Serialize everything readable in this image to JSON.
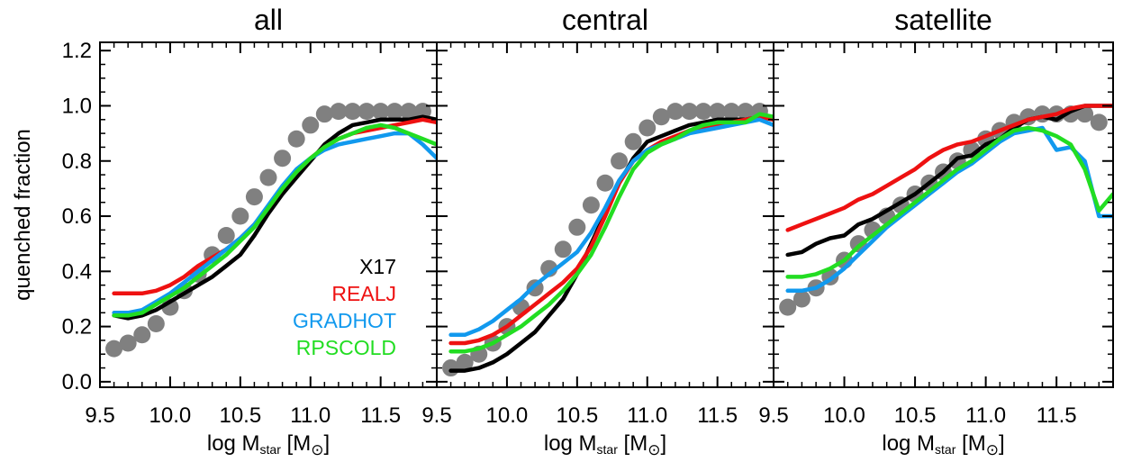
{
  "chart_data": {
    "type": "line",
    "ylabel": "quenched fraction",
    "xlabel": {
      "prefix": "log M",
      "sub": "star",
      "bracket_open": " [M",
      "sun_symbol": "⊙",
      "bracket_close": "]"
    },
    "xlim": [
      9.5,
      11.9
    ],
    "ylim": [
      -0.02,
      1.23
    ],
    "xticks": [
      9.5,
      10.0,
      10.5,
      11.0,
      11.5
    ],
    "xtick_labels": [
      "9.5",
      "10.0",
      "10.5",
      "11.0",
      "11.5"
    ],
    "yticks": [
      0.0,
      0.2,
      0.4,
      0.6,
      0.8,
      1.0,
      1.2
    ],
    "ytick_labels": [
      "0.0",
      "0.2",
      "0.4",
      "0.6",
      "0.8",
      "1.0",
      "1.2"
    ],
    "colors": {
      "X17": "#000000",
      "REALJ": "#ee1111",
      "GRADHOT": "#1199ee",
      "RPSCOLD": "#22dd22",
      "data": "#808080"
    },
    "legend": {
      "placement": "lower-right of first panel",
      "entries": [
        {
          "label": "X17",
          "color": "#000000"
        },
        {
          "label": "REALJ",
          "color": "#ee1111"
        },
        {
          "label": "GRADHOT",
          "color": "#1199ee"
        },
        {
          "label": "RPSCOLD",
          "color": "#22dd22"
        }
      ]
    },
    "panels": [
      {
        "title": "all",
        "points": {
          "x": [
            9.6,
            9.7,
            9.8,
            9.9,
            10.0,
            10.1,
            10.2,
            10.3,
            10.4,
            10.5,
            10.6,
            10.7,
            10.8,
            10.9,
            11.0,
            11.1,
            11.2,
            11.3,
            11.4,
            11.5,
            11.6,
            11.7,
            11.8
          ],
          "y": [
            0.12,
            0.14,
            0.17,
            0.21,
            0.27,
            0.33,
            0.39,
            0.46,
            0.53,
            0.6,
            0.67,
            0.74,
            0.81,
            0.88,
            0.93,
            0.97,
            0.98,
            0.98,
            0.98,
            0.98,
            0.98,
            0.98,
            0.98
          ]
        },
        "series": [
          {
            "name": "X17",
            "x": [
              9.6,
              9.7,
              9.8,
              9.9,
              10.0,
              10.1,
              10.2,
              10.3,
              10.4,
              10.5,
              10.6,
              10.7,
              10.8,
              10.9,
              11.0,
              11.1,
              11.2,
              11.3,
              11.4,
              11.5,
              11.6,
              11.7,
              11.8,
              11.9
            ],
            "y": [
              0.24,
              0.23,
              0.24,
              0.26,
              0.29,
              0.32,
              0.35,
              0.38,
              0.42,
              0.46,
              0.53,
              0.61,
              0.68,
              0.74,
              0.8,
              0.86,
              0.9,
              0.93,
              0.94,
              0.95,
              0.95,
              0.95,
              0.96,
              0.95
            ]
          },
          {
            "name": "REALJ",
            "x": [
              9.6,
              9.7,
              9.8,
              9.9,
              10.0,
              10.1,
              10.2,
              10.3,
              10.4,
              10.5,
              10.6,
              10.7,
              10.8,
              10.9,
              11.0,
              11.1,
              11.2,
              11.3,
              11.4,
              11.5,
              11.6,
              11.7,
              11.8,
              11.9
            ],
            "y": [
              0.32,
              0.32,
              0.32,
              0.33,
              0.35,
              0.38,
              0.42,
              0.45,
              0.48,
              0.52,
              0.57,
              0.63,
              0.7,
              0.76,
              0.81,
              0.85,
              0.88,
              0.9,
              0.91,
              0.92,
              0.93,
              0.94,
              0.95,
              0.94
            ]
          },
          {
            "name": "GRADHOT",
            "x": [
              9.6,
              9.7,
              9.8,
              9.9,
              10.0,
              10.1,
              10.2,
              10.3,
              10.4,
              10.5,
              10.6,
              10.7,
              10.8,
              10.9,
              11.0,
              11.1,
              11.2,
              11.3,
              11.4,
              11.5,
              11.6,
              11.7,
              11.8,
              11.9
            ],
            "y": [
              0.25,
              0.25,
              0.26,
              0.29,
              0.32,
              0.36,
              0.4,
              0.44,
              0.48,
              0.52,
              0.57,
              0.64,
              0.71,
              0.77,
              0.81,
              0.84,
              0.86,
              0.87,
              0.88,
              0.89,
              0.9,
              0.9,
              0.86,
              0.81
            ]
          },
          {
            "name": "RPSCOLD",
            "x": [
              9.6,
              9.7,
              9.8,
              9.9,
              10.0,
              10.1,
              10.2,
              10.3,
              10.4,
              10.5,
              10.6,
              10.7,
              10.8,
              10.9,
              11.0,
              11.1,
              11.2,
              11.3,
              11.4,
              11.5,
              11.6,
              11.7,
              11.8,
              11.9
            ],
            "y": [
              0.24,
              0.24,
              0.25,
              0.28,
              0.31,
              0.34,
              0.38,
              0.42,
              0.46,
              0.51,
              0.56,
              0.63,
              0.7,
              0.76,
              0.81,
              0.85,
              0.88,
              0.9,
              0.92,
              0.93,
              0.92,
              0.9,
              0.88,
              0.86
            ]
          }
        ]
      },
      {
        "title": "central",
        "points": {
          "x": [
            9.6,
            9.7,
            9.8,
            9.9,
            10.0,
            10.1,
            10.2,
            10.3,
            10.4,
            10.5,
            10.6,
            10.7,
            10.8,
            10.9,
            11.0,
            11.1,
            11.2,
            11.3,
            11.4,
            11.5,
            11.6,
            11.7,
            11.8
          ],
          "y": [
            0.05,
            0.07,
            0.1,
            0.14,
            0.2,
            0.27,
            0.34,
            0.41,
            0.48,
            0.56,
            0.64,
            0.72,
            0.8,
            0.87,
            0.92,
            0.96,
            0.98,
            0.98,
            0.98,
            0.98,
            0.98,
            0.98,
            0.98
          ]
        },
        "series": [
          {
            "name": "X17",
            "x": [
              9.6,
              9.7,
              9.8,
              9.9,
              10.0,
              10.1,
              10.2,
              10.3,
              10.4,
              10.5,
              10.6,
              10.7,
              10.8,
              10.9,
              11.0,
              11.1,
              11.2,
              11.3,
              11.4,
              11.5,
              11.6,
              11.7,
              11.8,
              11.9
            ],
            "y": [
              0.04,
              0.04,
              0.05,
              0.07,
              0.1,
              0.14,
              0.18,
              0.24,
              0.3,
              0.39,
              0.5,
              0.61,
              0.72,
              0.81,
              0.87,
              0.89,
              0.91,
              0.93,
              0.94,
              0.95,
              0.95,
              0.95,
              0.96,
              0.95
            ]
          },
          {
            "name": "REALJ",
            "x": [
              9.6,
              9.7,
              9.8,
              9.9,
              10.0,
              10.1,
              10.2,
              10.3,
              10.4,
              10.5,
              10.6,
              10.7,
              10.8,
              10.9,
              11.0,
              11.1,
              11.2,
              11.3,
              11.4,
              11.5,
              11.6,
              11.7,
              11.8,
              11.9
            ],
            "y": [
              0.14,
              0.14,
              0.15,
              0.17,
              0.2,
              0.24,
              0.28,
              0.32,
              0.36,
              0.41,
              0.49,
              0.6,
              0.72,
              0.8,
              0.84,
              0.87,
              0.89,
              0.91,
              0.92,
              0.93,
              0.94,
              0.95,
              0.96,
              0.95
            ]
          },
          {
            "name": "GRADHOT",
            "x": [
              9.6,
              9.7,
              9.8,
              9.9,
              10.0,
              10.1,
              10.2,
              10.3,
              10.4,
              10.5,
              10.6,
              10.7,
              10.8,
              10.9,
              11.0,
              11.1,
              11.2,
              11.3,
              11.4,
              11.5,
              11.6,
              11.7,
              11.8,
              11.9
            ],
            "y": [
              0.17,
              0.17,
              0.19,
              0.22,
              0.26,
              0.3,
              0.35,
              0.39,
              0.43,
              0.47,
              0.54,
              0.63,
              0.73,
              0.8,
              0.84,
              0.86,
              0.88,
              0.9,
              0.91,
              0.92,
              0.93,
              0.94,
              0.95,
              0.93
            ]
          },
          {
            "name": "RPSCOLD",
            "x": [
              9.6,
              9.7,
              9.8,
              9.9,
              10.0,
              10.1,
              10.2,
              10.3,
              10.4,
              10.5,
              10.6,
              10.7,
              10.8,
              10.9,
              11.0,
              11.1,
              11.2,
              11.3,
              11.4,
              11.5,
              11.6,
              11.7,
              11.8,
              11.9
            ],
            "y": [
              0.11,
              0.11,
              0.12,
              0.14,
              0.17,
              0.2,
              0.24,
              0.28,
              0.33,
              0.39,
              0.46,
              0.56,
              0.67,
              0.77,
              0.83,
              0.86,
              0.88,
              0.91,
              0.93,
              0.94,
              0.94,
              0.94,
              0.97,
              0.96
            ]
          }
        ]
      },
      {
        "title": "satellite",
        "points": {
          "x": [
            9.6,
            9.7,
            9.8,
            9.9,
            10.0,
            10.1,
            10.2,
            10.3,
            10.4,
            10.5,
            10.6,
            10.7,
            10.8,
            10.9,
            11.0,
            11.1,
            11.2,
            11.3,
            11.4,
            11.5,
            11.6,
            11.7,
            11.8
          ],
          "y": [
            0.27,
            0.3,
            0.34,
            0.38,
            0.44,
            0.5,
            0.55,
            0.6,
            0.64,
            0.68,
            0.72,
            0.76,
            0.8,
            0.84,
            0.88,
            0.91,
            0.94,
            0.96,
            0.97,
            0.97,
            0.97,
            0.97,
            0.94
          ]
        },
        "series": [
          {
            "name": "X17",
            "x": [
              9.6,
              9.7,
              9.8,
              9.9,
              10.0,
              10.1,
              10.2,
              10.3,
              10.4,
              10.5,
              10.6,
              10.7,
              10.8,
              10.9,
              11.0,
              11.1,
              11.2,
              11.3,
              11.4,
              11.5,
              11.6,
              11.7,
              11.8,
              11.9
            ],
            "y": [
              0.46,
              0.47,
              0.5,
              0.52,
              0.53,
              0.57,
              0.59,
              0.62,
              0.65,
              0.68,
              0.72,
              0.76,
              0.81,
              0.82,
              0.86,
              0.88,
              0.92,
              0.95,
              0.96,
              0.95,
              0.98,
              1.0,
              1.0,
              1.0
            ]
          },
          {
            "name": "REALJ",
            "x": [
              9.6,
              9.7,
              9.8,
              9.9,
              10.0,
              10.1,
              10.2,
              10.3,
              10.4,
              10.5,
              10.6,
              10.7,
              10.8,
              10.9,
              11.0,
              11.1,
              11.2,
              11.3,
              11.4,
              11.5,
              11.6,
              11.7,
              11.8,
              11.9
            ],
            "y": [
              0.55,
              0.57,
              0.59,
              0.61,
              0.63,
              0.66,
              0.68,
              0.71,
              0.74,
              0.77,
              0.81,
              0.84,
              0.86,
              0.87,
              0.89,
              0.91,
              0.93,
              0.95,
              0.96,
              0.97,
              0.99,
              1.0,
              1.0,
              1.0
            ]
          },
          {
            "name": "GRADHOT",
            "x": [
              9.6,
              9.7,
              9.8,
              9.9,
              10.0,
              10.1,
              10.2,
              10.3,
              10.4,
              10.5,
              10.6,
              10.7,
              10.8,
              10.9,
              11.0,
              11.1,
              11.2,
              11.3,
              11.4,
              11.5,
              11.6,
              11.7,
              11.8,
              11.9
            ],
            "y": [
              0.33,
              0.33,
              0.34,
              0.37,
              0.41,
              0.46,
              0.51,
              0.56,
              0.6,
              0.64,
              0.68,
              0.72,
              0.76,
              0.79,
              0.83,
              0.87,
              0.9,
              0.91,
              0.92,
              0.84,
              0.85,
              0.8,
              0.6,
              0.6
            ]
          },
          {
            "name": "RPSCOLD",
            "x": [
              9.6,
              9.7,
              9.8,
              9.9,
              10.0,
              10.1,
              10.2,
              10.3,
              10.4,
              10.5,
              10.6,
              10.7,
              10.8,
              10.9,
              11.0,
              11.1,
              11.2,
              11.3,
              11.4,
              11.5,
              11.6,
              11.7,
              11.8,
              11.9
            ],
            "y": [
              0.38,
              0.38,
              0.39,
              0.41,
              0.44,
              0.49,
              0.53,
              0.57,
              0.61,
              0.65,
              0.69,
              0.73,
              0.77,
              0.8,
              0.84,
              0.88,
              0.91,
              0.92,
              0.91,
              0.89,
              0.86,
              0.77,
              0.62,
              0.68
            ]
          }
        ]
      }
    ]
  }
}
